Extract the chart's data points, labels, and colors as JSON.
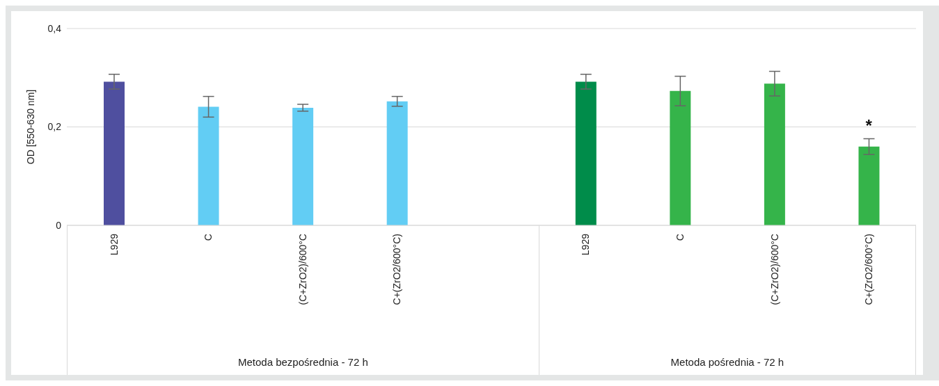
{
  "chart_data": {
    "type": "bar",
    "ylabel": "OD [550-630 nm]",
    "categories": [
      "L929",
      "C",
      "(C+ZrO2)/600°C",
      "C+(ZrO2/600°C)",
      null,
      "L929",
      "C",
      "(C+ZrO2)/600°C",
      "C+(ZrO2/600°C)"
    ],
    "values": [
      0.292,
      0.241,
      0.239,
      0.252,
      null,
      0.292,
      0.273,
      0.288,
      0.16
    ],
    "errors": [
      0.015,
      0.021,
      0.007,
      0.01,
      null,
      0.015,
      0.03,
      0.025,
      0.016
    ],
    "colors": [
      "#4f4f9f",
      "#62cdf4",
      "#62cdf4",
      "#62cdf4",
      "#62cdf4",
      "#008c4a",
      "#35b44a",
      "#35b44a",
      "#35b44a"
    ],
    "ylim": [
      0,
      0.4
    ],
    "yticks": [
      {
        "value": 0,
        "label": "0"
      },
      {
        "value": 0.2,
        "label": "0,2"
      },
      {
        "value": 0.4,
        "label": "0,4"
      }
    ],
    "grid": "y",
    "legend": false,
    "annotations": [
      "Metoda bezpośrednia - 72 h",
      "Metoda pośrednia - 72 h",
      "*"
    ]
  }
}
